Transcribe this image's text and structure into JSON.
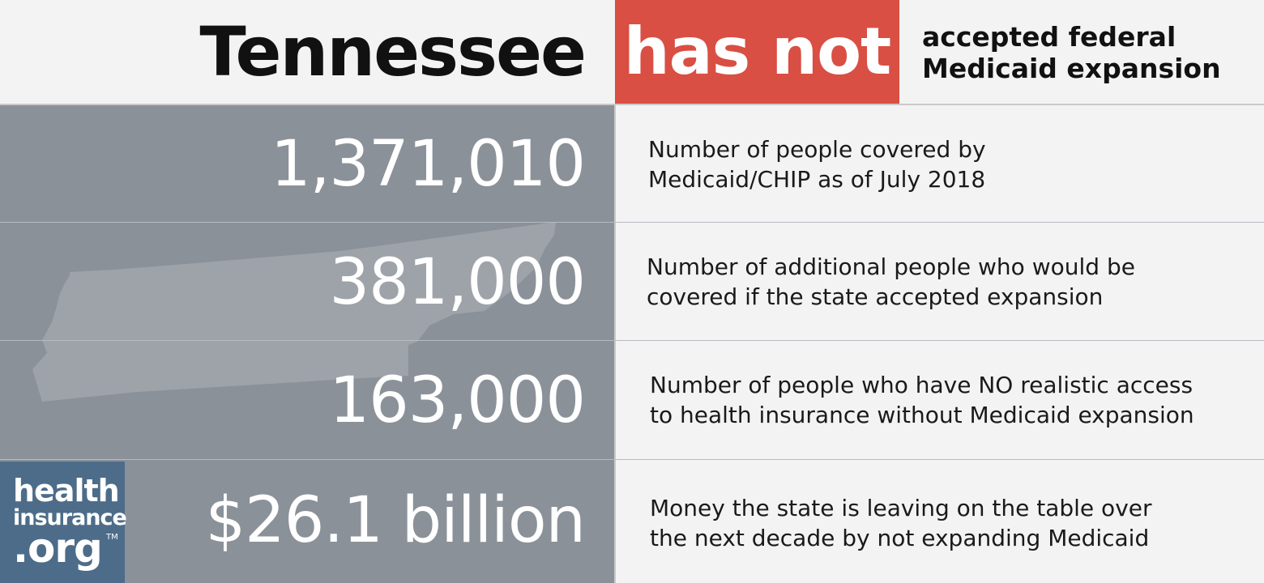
{
  "header": {
    "state": "Tennessee",
    "status": "has not",
    "description_lines": [
      "accepted federal",
      "Medicaid expansion"
    ]
  },
  "stats": [
    {
      "value": "1,371,010",
      "description_lines": [
        "Number of people covered by",
        "Medicaid/CHIP as of July 2018"
      ]
    },
    {
      "value": "381,000",
      "description_lines": [
        "Number of additional people who would be",
        "covered if the state accepted expansion"
      ]
    },
    {
      "value": "163,000",
      "description_lines": [
        "Number of people who have NO realistic access",
        "to health insurance without Medicaid expansion"
      ]
    },
    {
      "value": "$26.1 billion",
      "description_lines": [
        "Money the state is leaving on the table over",
        "the next decade by not expanding Medicaid"
      ]
    }
  ],
  "logo": {
    "lines": [
      "health",
      "insurance",
      ".org"
    ],
    "trademark": "TM"
  },
  "colors": {
    "status_red": "#d94f43",
    "panel_grey": "#8b9198",
    "logo_blue": "#4d6c89",
    "background": "#f3f3f3"
  }
}
